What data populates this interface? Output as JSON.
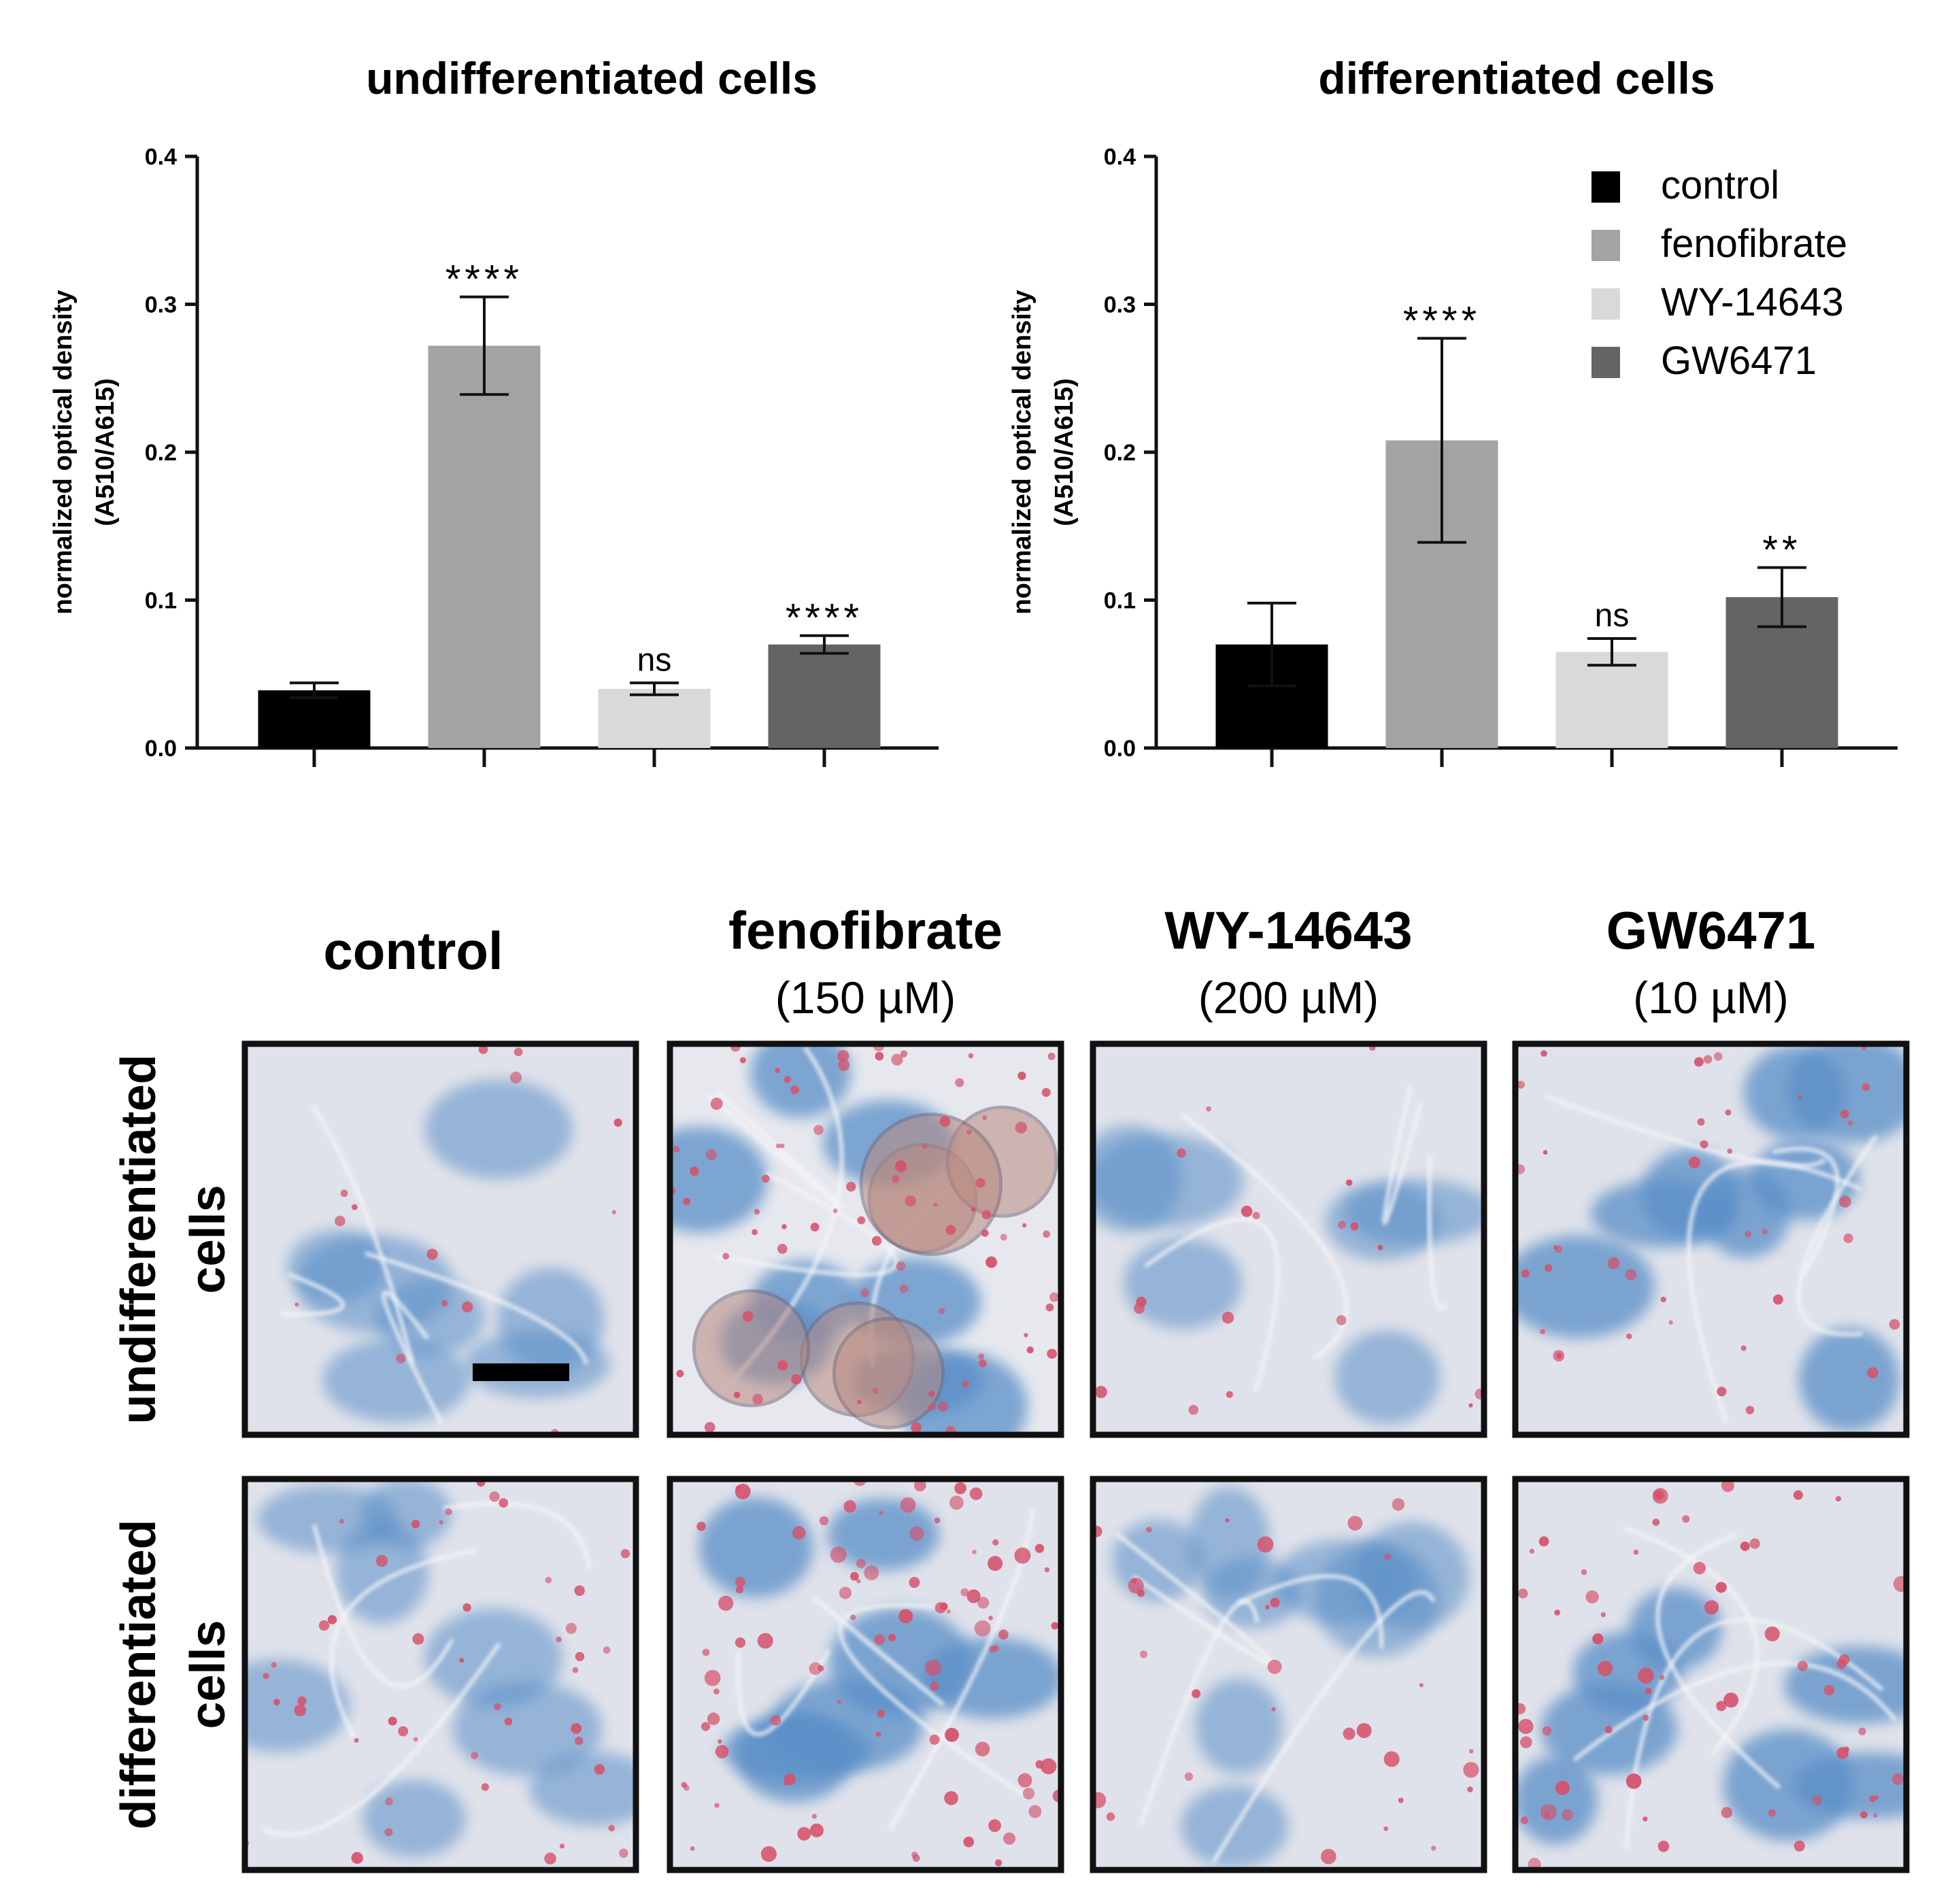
{
  "chart_data": [
    {
      "type": "bar",
      "title": "undifferentiated cells",
      "ylabel_line1": "normalized optical density",
      "ylabel_line2": "(A510/A615)",
      "ylim": [
        0,
        0.4
      ],
      "yticks": [
        "0.0",
        "0.1",
        "0.2",
        "0.3",
        "0.4"
      ],
      "categories": [
        "control",
        "fenofibrate",
        "WY-14643",
        "GW6471"
      ],
      "values": [
        0.039,
        0.272,
        0.04,
        0.07
      ],
      "errors": [
        0.005,
        0.033,
        0.004,
        0.006
      ],
      "annotations": [
        "",
        "****",
        "ns",
        "****"
      ],
      "colors": [
        "#000000",
        "#a3a3a5",
        "#d9d9d9",
        "#646464"
      ]
    },
    {
      "type": "bar",
      "title": "differentiated cells",
      "ylabel_line1": "normalized optical density",
      "ylabel_line2": "(A510/A615)",
      "ylim": [
        0,
        0.4
      ],
      "yticks": [
        "0.0",
        "0.1",
        "0.2",
        "0.3",
        "0.4"
      ],
      "categories": [
        "control",
        "fenofibrate",
        "WY-14643",
        "GW6471"
      ],
      "values": [
        0.07,
        0.208,
        0.065,
        0.102
      ],
      "errors": [
        0.028,
        0.069,
        0.009,
        0.02
      ],
      "annotations": [
        "",
        "****",
        "ns",
        "**"
      ],
      "colors": [
        "#000000",
        "#a3a3a5",
        "#d9d9d9",
        "#646464"
      ]
    }
  ],
  "legend": [
    {
      "label": "control",
      "color": "#000000"
    },
    {
      "label": "fenofibrate",
      "color": "#a3a3a5"
    },
    {
      "label": "WY-14643",
      "color": "#d9d9d9"
    },
    {
      "label": "GW6471",
      "color": "#646464"
    }
  ],
  "micrographs": {
    "columns": [
      {
        "title": "control",
        "subtitle": ""
      },
      {
        "title": "fenofibrate",
        "subtitle": "(150 µM)"
      },
      {
        "title": "WY-14643",
        "subtitle": "(200 µM)"
      },
      {
        "title": "GW6471",
        "subtitle": "(10 µM)"
      }
    ],
    "rows": [
      {
        "line1": "undifferentiated",
        "line2": "cells"
      },
      {
        "line1": "differentiated",
        "line2": "cells"
      }
    ],
    "stain_colors": {
      "background": "#dfe2ea",
      "nucleus": "#5a8fc8",
      "lipid": "#d6506a"
    }
  }
}
